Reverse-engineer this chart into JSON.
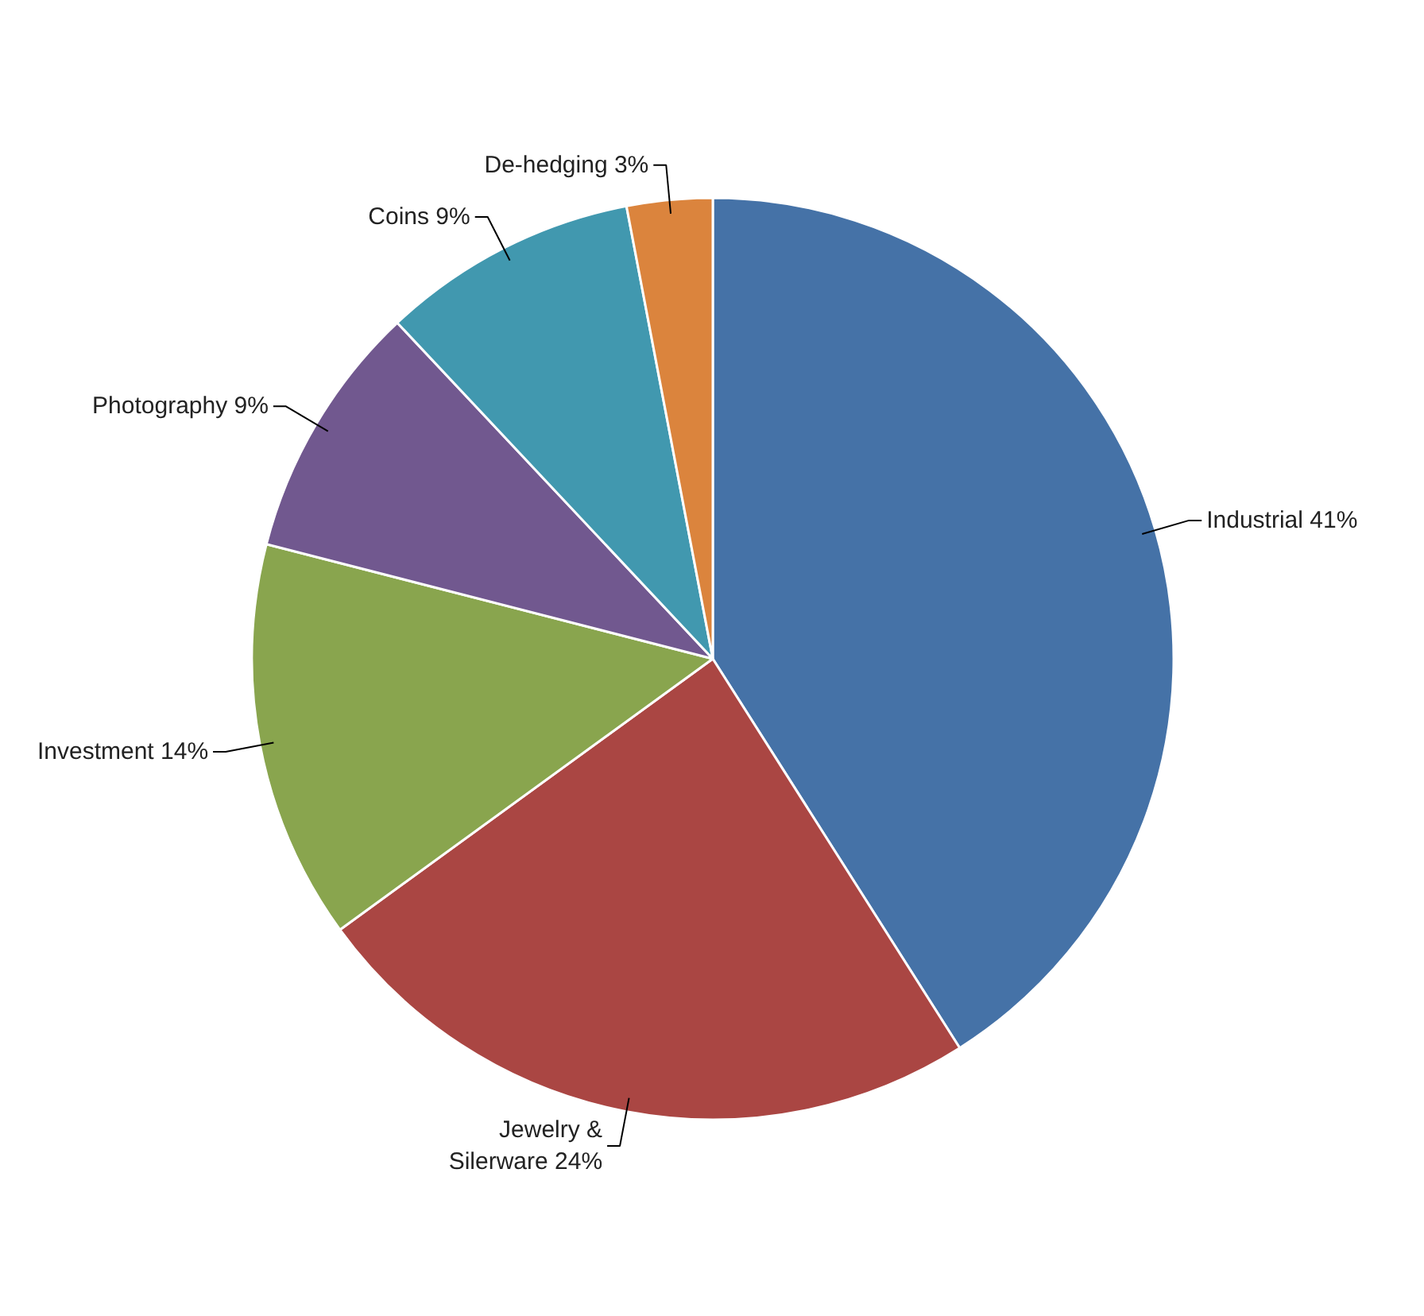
{
  "chart_data": {
    "type": "pie",
    "categories": [
      "Industrial",
      "Jewelry & Silerware",
      "Investment",
      "Photography",
      "Coins",
      "De-hedging"
    ],
    "values": [
      41,
      24,
      14,
      9,
      9,
      3
    ],
    "value_labels": [
      "41%",
      "24%",
      "14%",
      "9%",
      "9%",
      "3%"
    ],
    "colors": [
      "#4572a7",
      "#aa4643",
      "#89a54e",
      "#71588f",
      "#4198af",
      "#db843d"
    ]
  }
}
